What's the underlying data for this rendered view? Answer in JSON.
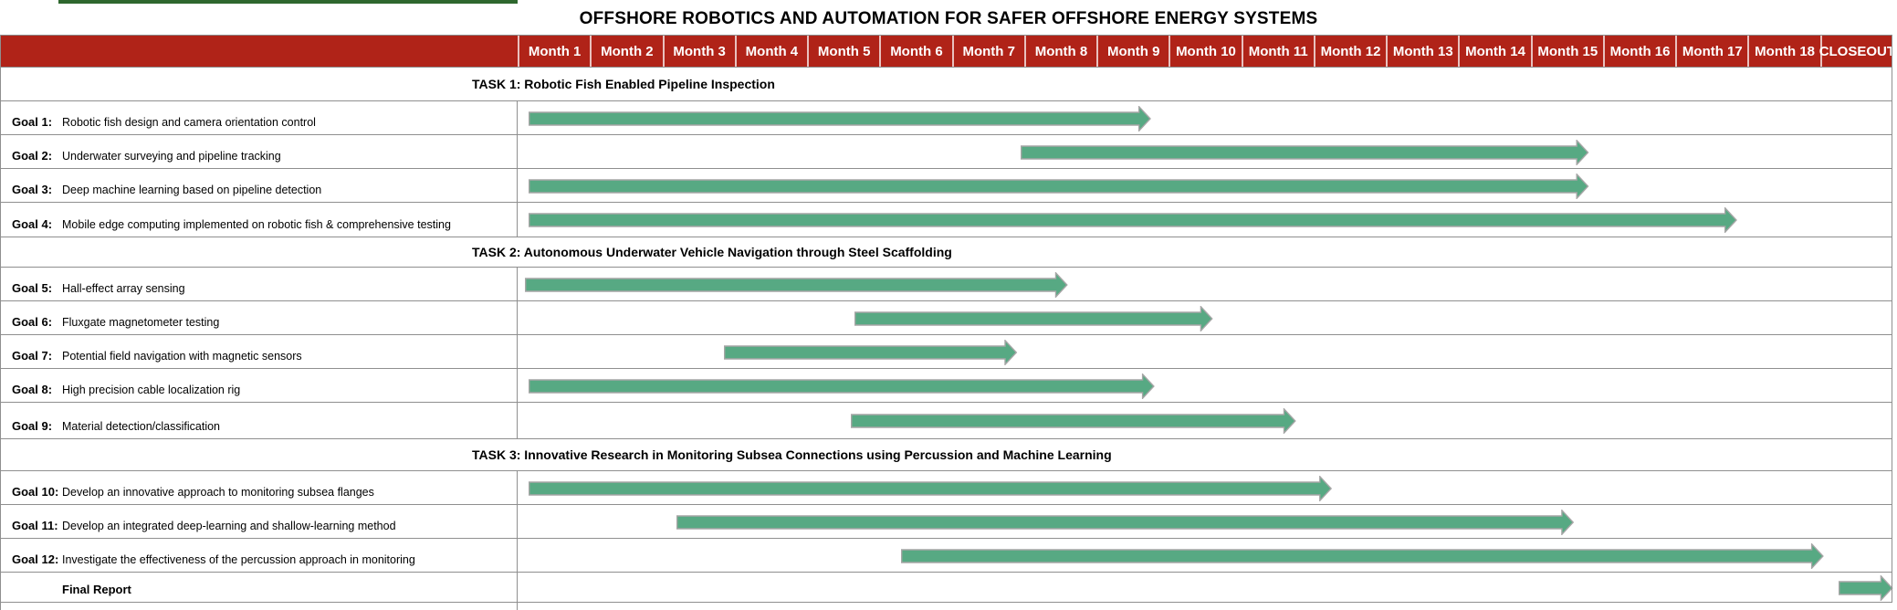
{
  "title": "OFFSHORE ROBOTICS AND AUTOMATION FOR SAFER OFFSHORE ENERGY SYSTEMS",
  "header": {
    "months": [
      "Month 1",
      "Month 2",
      "Month 3",
      "Month 4",
      "Month 5",
      "Month 6",
      "Month 7",
      "Month 8",
      "Month 9",
      "Month 10",
      "Month 11",
      "Month 12",
      "Month 13",
      "Month 14",
      "Month 15",
      "Month 16",
      "Month 17",
      "Month 18"
    ],
    "closeout": "CLOSEOUT"
  },
  "colors": {
    "header_bg": "#B02318",
    "header_text": "#FFFFFF",
    "bar_fill": "#57A983",
    "bar_outline": "#A6A6A6",
    "grid": "#8F8F8F",
    "accent_strip": "#2E672E",
    "text": "#000000"
  },
  "chart_data": {
    "type": "gantt",
    "title": "OFFSHORE ROBOTICS AND AUTOMATION FOR SAFER OFFSHORE ENERGY SYSTEMS",
    "time_axis": {
      "unit": "month",
      "columns": [
        "Month 1",
        "Month 2",
        "Month 3",
        "Month 4",
        "Month 5",
        "Month 6",
        "Month 7",
        "Month 8",
        "Month 9",
        "Month 10",
        "Month 11",
        "Month 12",
        "Month 13",
        "Month 14",
        "Month 15",
        "Month 16",
        "Month 17",
        "Month 18",
        "CLOSEOUT"
      ],
      "range_months": [
        0,
        19
      ],
      "note": "start/end below are months elapsed from the beginning of Month 1; 19 = end of CLOSEOUT column"
    },
    "rows": [
      {
        "type": "section",
        "label": "TASK 1: Robotic Fish Enabled Pipeline Inspection"
      },
      {
        "type": "goal",
        "goal": "Goal 1:",
        "text": "Robotic fish design and camera orientation control",
        "start": 0.15,
        "end": 8.75
      },
      {
        "type": "goal",
        "goal": "Goal 2:",
        "text": "Underwater surveying and pipeline tracking",
        "start": 6.95,
        "end": 14.8
      },
      {
        "type": "goal",
        "goal": "Goal 3:",
        "text": "Deep machine learning based on pipeline detection",
        "start": 0.15,
        "end": 14.8
      },
      {
        "type": "goal",
        "goal": "Goal 4:",
        "text": "Mobile edge computing implemented on robotic fish & comprehensive testing",
        "start": 0.15,
        "end": 16.85
      },
      {
        "type": "section",
        "label": "TASK 2: Autonomous Underwater Vehicle Navigation through Steel Scaffolding"
      },
      {
        "type": "goal",
        "goal": "Goal 5:",
        "text": "Hall-effect array sensing",
        "start": 0.1,
        "end": 7.6
      },
      {
        "type": "goal",
        "goal": "Goal 6:",
        "text": "Fluxgate magnetometer testing",
        "start": 4.65,
        "end": 9.6
      },
      {
        "type": "goal",
        "goal": "Goal 7:",
        "text": "Potential field navigation with magnetic sensors",
        "start": 2.85,
        "end": 6.9
      },
      {
        "type": "goal",
        "goal": "Goal 8:",
        "text": "High precision cable localization rig",
        "start": 0.15,
        "end": 8.8
      },
      {
        "type": "goal",
        "goal": "Goal 9:",
        "text": "Material detection/classification",
        "start": 4.6,
        "end": 10.75
      },
      {
        "type": "section",
        "label": "TASK 3: Innovative Research in Monitoring Subsea Connections using Percussion and Machine Learning"
      },
      {
        "type": "goal",
        "goal": "Goal 10:",
        "text": "Develop an innovative approach to monitoring subsea flanges",
        "start": 0.15,
        "end": 11.25
      },
      {
        "type": "goal",
        "goal": "Goal 11:",
        "text": "Develop an integrated deep-learning and shallow-learning method",
        "start": 2.2,
        "end": 14.6
      },
      {
        "type": "goal",
        "goal": "Goal 12:",
        "text": "Investigate the effectiveness of the percussion approach in monitoring",
        "start": 5.3,
        "end": 18.05
      },
      {
        "type": "goal",
        "goal": "",
        "text": "Final Report",
        "start": 18.25,
        "end": 19,
        "emphasis": true
      }
    ]
  }
}
